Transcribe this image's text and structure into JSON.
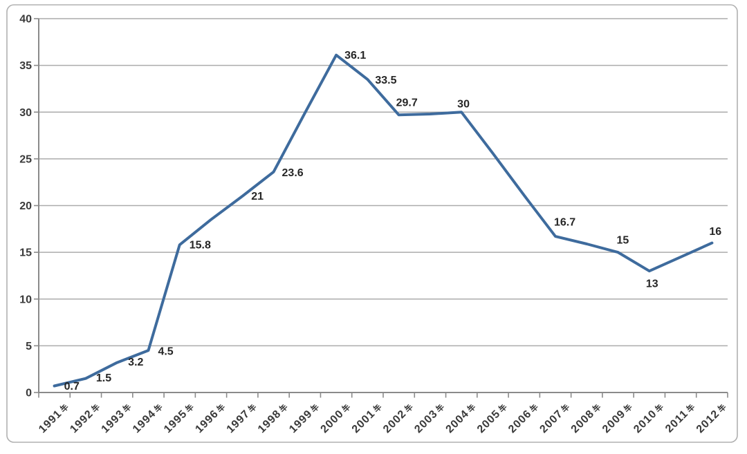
{
  "chart_data": {
    "type": "line",
    "title": "",
    "xlabel": "",
    "ylabel": "",
    "ylim": [
      0,
      40
    ],
    "ytick_step": 5,
    "yticks": [
      "0",
      "5",
      "10",
      "15",
      "20",
      "25",
      "30",
      "35",
      "40"
    ],
    "grid": true,
    "legend": false,
    "x_label_rotation_deg": -45,
    "x_label_suffix": "年",
    "categories": [
      "1991年",
      "1992年",
      "1993年",
      "1994年",
      "1995年",
      "1996年",
      "1997年",
      "1998年",
      "1999年",
      "2000年",
      "2001年",
      "2002年",
      "2003年",
      "2004年",
      "2005年",
      "2006年",
      "2007年",
      "2008年",
      "2009年",
      "2010年",
      "2011年",
      "2012年"
    ],
    "points": [
      {
        "category": "1991年",
        "value": 0.7,
        "label": "0.7",
        "label_offset": [
          14,
          1
        ]
      },
      {
        "category": "1992年",
        "value": 1.5,
        "label": "1.5",
        "label_offset": [
          15,
          0
        ]
      },
      {
        "category": "1993年",
        "value": 3.2,
        "label": "3.2",
        "label_offset": [
          16,
          0
        ]
      },
      {
        "category": "1994年",
        "value": 4.5,
        "label": "4.5",
        "label_offset": [
          14,
          2
        ]
      },
      {
        "category": "1995年",
        "value": 15.8,
        "label": "15.8",
        "label_offset": [
          14,
          1
        ]
      },
      {
        "category": "1996年",
        "value": 18.5,
        "label": null
      },
      {
        "category": "1997年",
        "value": 21,
        "label": "21",
        "label_offset": [
          13,
          1
        ]
      },
      {
        "category": "1998年",
        "value": 23.6,
        "label": "23.6",
        "label_offset": [
          12,
          2
        ]
      },
      {
        "category": "1999年",
        "value": 29.9,
        "label": null
      },
      {
        "category": "2000年",
        "value": 36.1,
        "label": "36.1",
        "label_offset": [
          12,
          1
        ]
      },
      {
        "category": "2001年",
        "value": 33.5,
        "label": "33.5",
        "label_offset": [
          11,
          2
        ]
      },
      {
        "category": "2002年",
        "value": 29.7,
        "label": "29.7",
        "label_offset": [
          -4,
          -17
        ]
      },
      {
        "category": "2003年",
        "value": 29.8,
        "label": null
      },
      {
        "category": "2004年",
        "value": 30,
        "label": "30",
        "label_offset": [
          -6,
          -11
        ]
      },
      {
        "category": "2005年",
        "value": 25.6,
        "label": null
      },
      {
        "category": "2006年",
        "value": 21.1,
        "label": null
      },
      {
        "category": "2007年",
        "value": 16.7,
        "label": "16.7",
        "label_offset": [
          -2,
          -20
        ]
      },
      {
        "category": "2008年",
        "value": 15.9,
        "label": null
      },
      {
        "category": "2009年",
        "value": 15,
        "label": "15",
        "label_offset": [
          -2,
          -17
        ]
      },
      {
        "category": "2010年",
        "value": 13,
        "label": "13",
        "label_offset": [
          -5,
          19
        ]
      },
      {
        "category": "2011年",
        "value": 14.5,
        "label": null
      },
      {
        "category": "2012年",
        "value": 16,
        "label": "16",
        "label_offset": [
          -4,
          -16
        ]
      }
    ],
    "colors": {
      "line": "#3e6b9d",
      "grid": "#ababab",
      "axis": "#8a8a8a",
      "frame_border": "#b0b0b0",
      "data_label": "#262626",
      "tick_label": "#3a3a3a",
      "background": "#ffffff"
    }
  }
}
